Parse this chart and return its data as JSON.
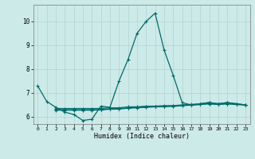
{
  "xlabel": "Humidex (Indice chaleur)",
  "bg_color": "#cceae8",
  "grid_color": "#b0d4d0",
  "line_color": "#006b6b",
  "xlim": [
    -0.5,
    23.5
  ],
  "ylim": [
    5.7,
    10.7
  ],
  "xticks": [
    0,
    1,
    2,
    3,
    4,
    5,
    6,
    7,
    8,
    9,
    10,
    11,
    12,
    13,
    14,
    15,
    16,
    17,
    18,
    19,
    20,
    21,
    22,
    23
  ],
  "yticks": [
    6,
    7,
    8,
    9,
    10
  ],
  "series": [
    [
      7.3,
      6.65,
      6.4,
      6.2,
      6.1,
      5.85,
      5.9,
      6.45,
      6.4,
      7.5,
      8.4,
      9.5,
      10.0,
      10.35,
      8.8,
      7.75,
      6.6,
      6.5,
      6.55,
      6.6,
      6.55,
      6.6,
      6.55,
      6.5
    ],
    [
      null,
      null,
      6.35,
      6.35,
      6.35,
      6.35,
      6.35,
      6.35,
      6.38,
      6.38,
      6.42,
      6.42,
      6.45,
      6.45,
      6.47,
      6.47,
      6.5,
      6.52,
      6.55,
      6.6,
      6.55,
      6.6,
      6.55,
      6.5
    ],
    [
      null,
      null,
      6.28,
      6.28,
      6.28,
      6.28,
      6.28,
      6.3,
      6.32,
      6.33,
      6.36,
      6.38,
      6.4,
      6.42,
      6.43,
      6.44,
      6.47,
      6.49,
      6.52,
      6.55,
      6.52,
      6.55,
      6.52,
      6.5
    ],
    [
      null,
      null,
      6.3,
      6.3,
      6.3,
      6.3,
      6.3,
      6.3,
      6.33,
      6.35,
      6.37,
      6.4,
      6.42,
      6.43,
      6.44,
      6.46,
      6.49,
      6.5,
      6.52,
      6.55,
      6.52,
      6.55,
      6.52,
      6.5
    ]
  ]
}
